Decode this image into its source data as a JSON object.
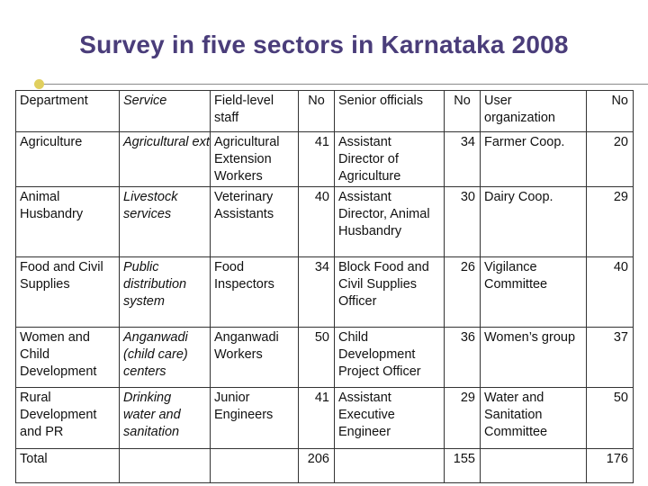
{
  "title": "Survey in five sectors in Karnataka 2008",
  "columns": [
    "Department",
    "Service",
    "Field-level staff",
    "No",
    "Senior officials",
    "No",
    "User organization",
    "No"
  ],
  "rows": [
    {
      "department": "Agriculture",
      "service": "Agricultural extension",
      "field_staff": "Agricultural Extension Workers",
      "field_no": "41",
      "senior": "Assistant Director of Agriculture",
      "senior_no": "34",
      "user_org": "Farmer Coop.",
      "user_no": "20"
    },
    {
      "department": "Animal Husbandry",
      "service": "Livestock services",
      "field_staff": "Veterinary Assistants",
      "field_no": "40",
      "senior": "Assistant Director, Animal Husbandry",
      "senior_no": "30",
      "user_org": "Dairy Coop.",
      "user_no": "29"
    },
    {
      "department": "Food and Civil Supplies",
      "service": "Public distribution system",
      "field_staff": "Food Inspectors",
      "field_no": "34",
      "senior": "Block Food and Civil Supplies Officer",
      "senior_no": "26",
      "user_org": "Vigilance Committee",
      "user_no": "40"
    },
    {
      "department": "Women and Child Development",
      "service": "Anganwadi (child care) centers",
      "field_staff": "Anganwadi Workers",
      "field_no": "50",
      "senior": "Child Development Project Officer",
      "senior_no": "36",
      "user_org": "Women’s group",
      "user_no": "37"
    },
    {
      "department": "Rural Development and PR",
      "service": "Drinking water and sanitation",
      "field_staff": "Junior Engineers",
      "field_no": "41",
      "senior": "Assistant Executive Engineer",
      "senior_no": "29",
      "user_org": "Water and Sanitation Committee",
      "user_no": "50"
    }
  ],
  "total": {
    "label": "Total",
    "field_no": "206",
    "senior_no": "155",
    "user_no": "176"
  }
}
